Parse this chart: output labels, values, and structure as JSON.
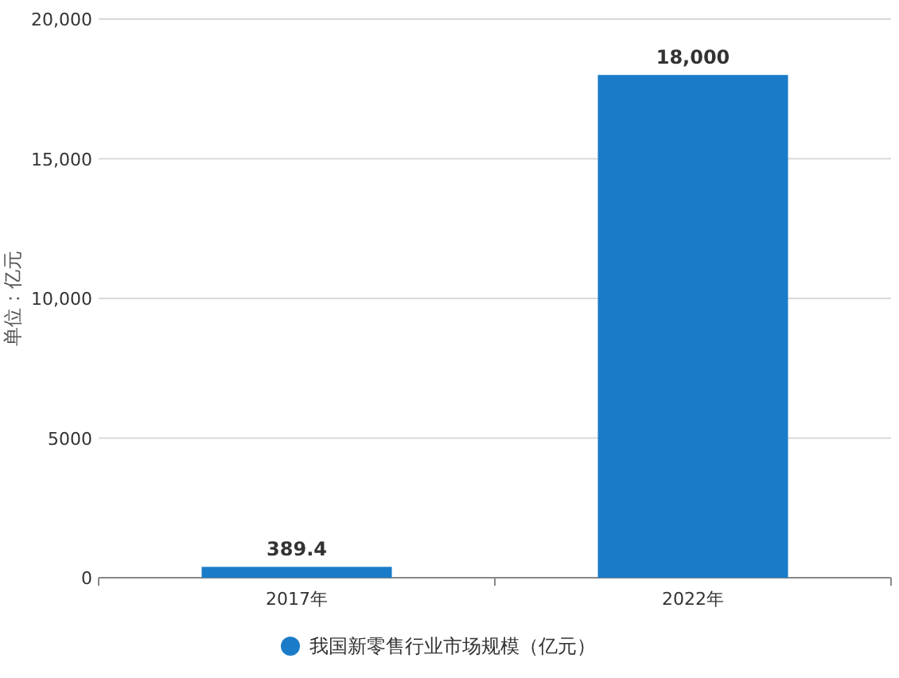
{
  "chart_data": {
    "type": "bar",
    "ylabel": "单位：亿元",
    "categories": [
      "2017年",
      "2022年"
    ],
    "series": [
      {
        "name": "我国新零售行业市场规模（亿元）",
        "color": "#1a7cc8",
        "values": [
          389.4,
          18000
        ],
        "value_labels": [
          "389.4",
          "18,000"
        ]
      }
    ],
    "ylim": [
      0,
      20000
    ],
    "yticks": [
      0,
      5000,
      {
        "value": 10000,
        "label": "10,000"
      },
      {
        "value": 15000,
        "label": "15,000"
      },
      {
        "value": 20000,
        "label": "20,000"
      }
    ],
    "grid": "y",
    "legend": "bottom"
  }
}
